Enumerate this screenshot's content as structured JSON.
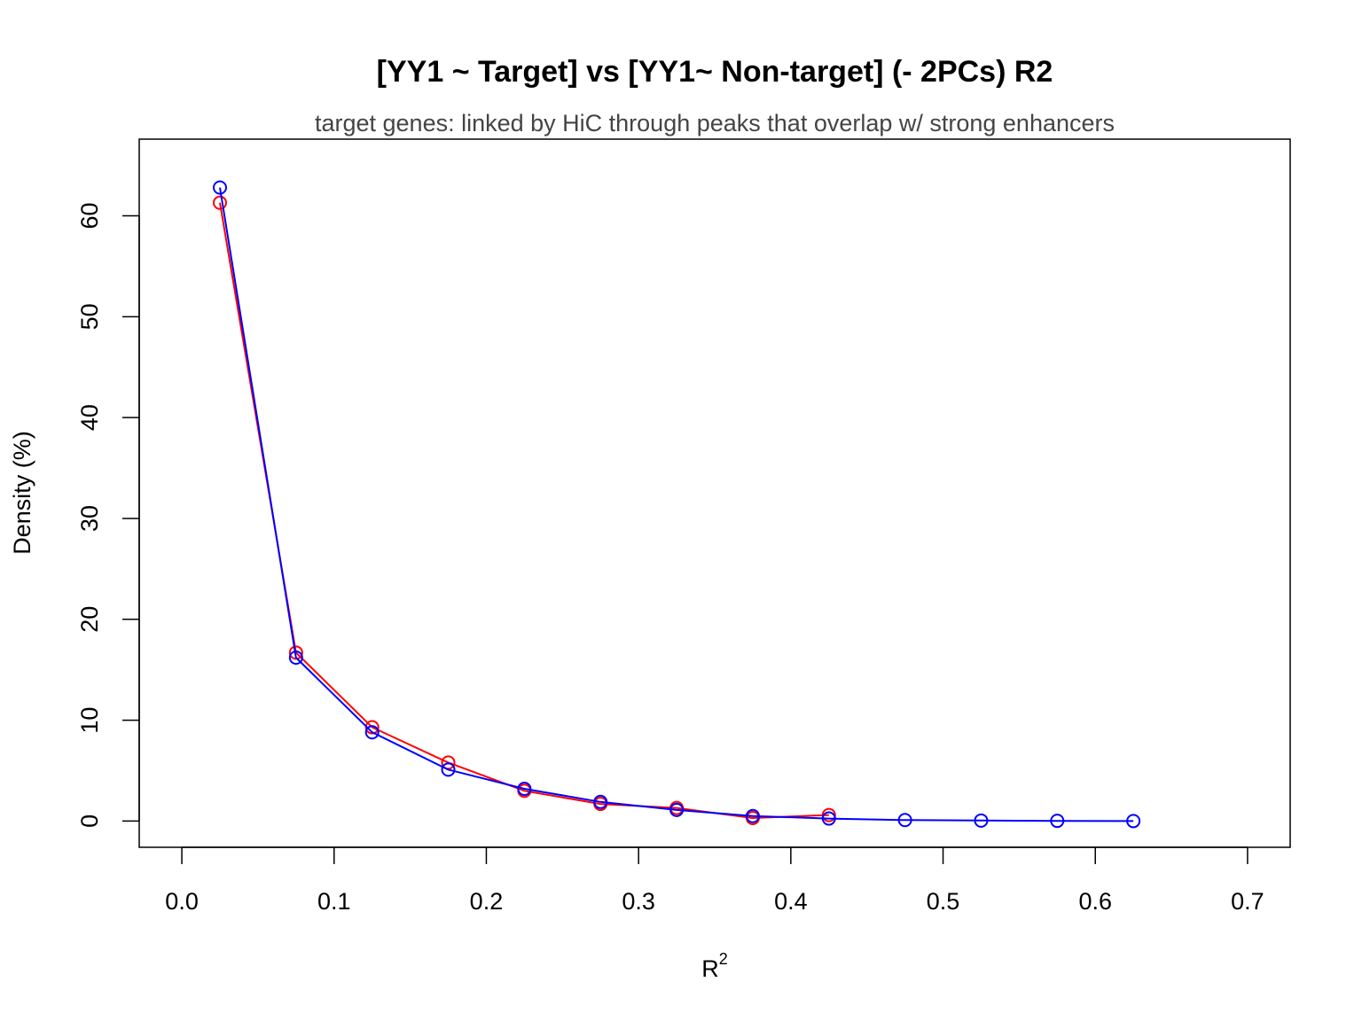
{
  "chart_data": {
    "type": "line",
    "title": "[YY1 ~ Target] vs [YY1~ Non-target] (- 2PCs) R2",
    "subtitle": "target genes: linked by HiC through peaks that overlap w/ strong enhancers",
    "xlabel": "R",
    "xlabel_superscript": "2",
    "ylabel": "Density (%)",
    "xlim": [
      -0.028,
      0.728
    ],
    "ylim": [
      -2.6,
      67.6
    ],
    "x_ticks": [
      0.0,
      0.1,
      0.2,
      0.3,
      0.4,
      0.5,
      0.6,
      0.7
    ],
    "x_tick_labels": [
      "0.0",
      "0.1",
      "0.2",
      "0.3",
      "0.4",
      "0.5",
      "0.6",
      "0.7"
    ],
    "y_ticks": [
      0,
      10,
      20,
      30,
      40,
      50,
      60
    ],
    "y_tick_labels": [
      "0",
      "10",
      "20",
      "30",
      "40",
      "50",
      "60"
    ],
    "grid": false,
    "marker": "open-circle",
    "series": [
      {
        "color": "#ff0000",
        "x": [
          0.025,
          0.075,
          0.125,
          0.175,
          0.225,
          0.275,
          0.325,
          0.375,
          0.425
        ],
        "y": [
          61.3,
          16.7,
          9.3,
          5.8,
          3.0,
          1.7,
          1.3,
          0.3,
          0.6
        ]
      },
      {
        "color": "#0000ff",
        "x": [
          0.025,
          0.075,
          0.125,
          0.175,
          0.225,
          0.275,
          0.325,
          0.375,
          0.425,
          0.475,
          0.525,
          0.575,
          0.625
        ],
        "y": [
          62.8,
          16.2,
          8.8,
          5.1,
          3.2,
          1.9,
          1.1,
          0.5,
          0.25,
          0.1,
          0.05,
          0.02,
          0.0
        ]
      }
    ]
  }
}
